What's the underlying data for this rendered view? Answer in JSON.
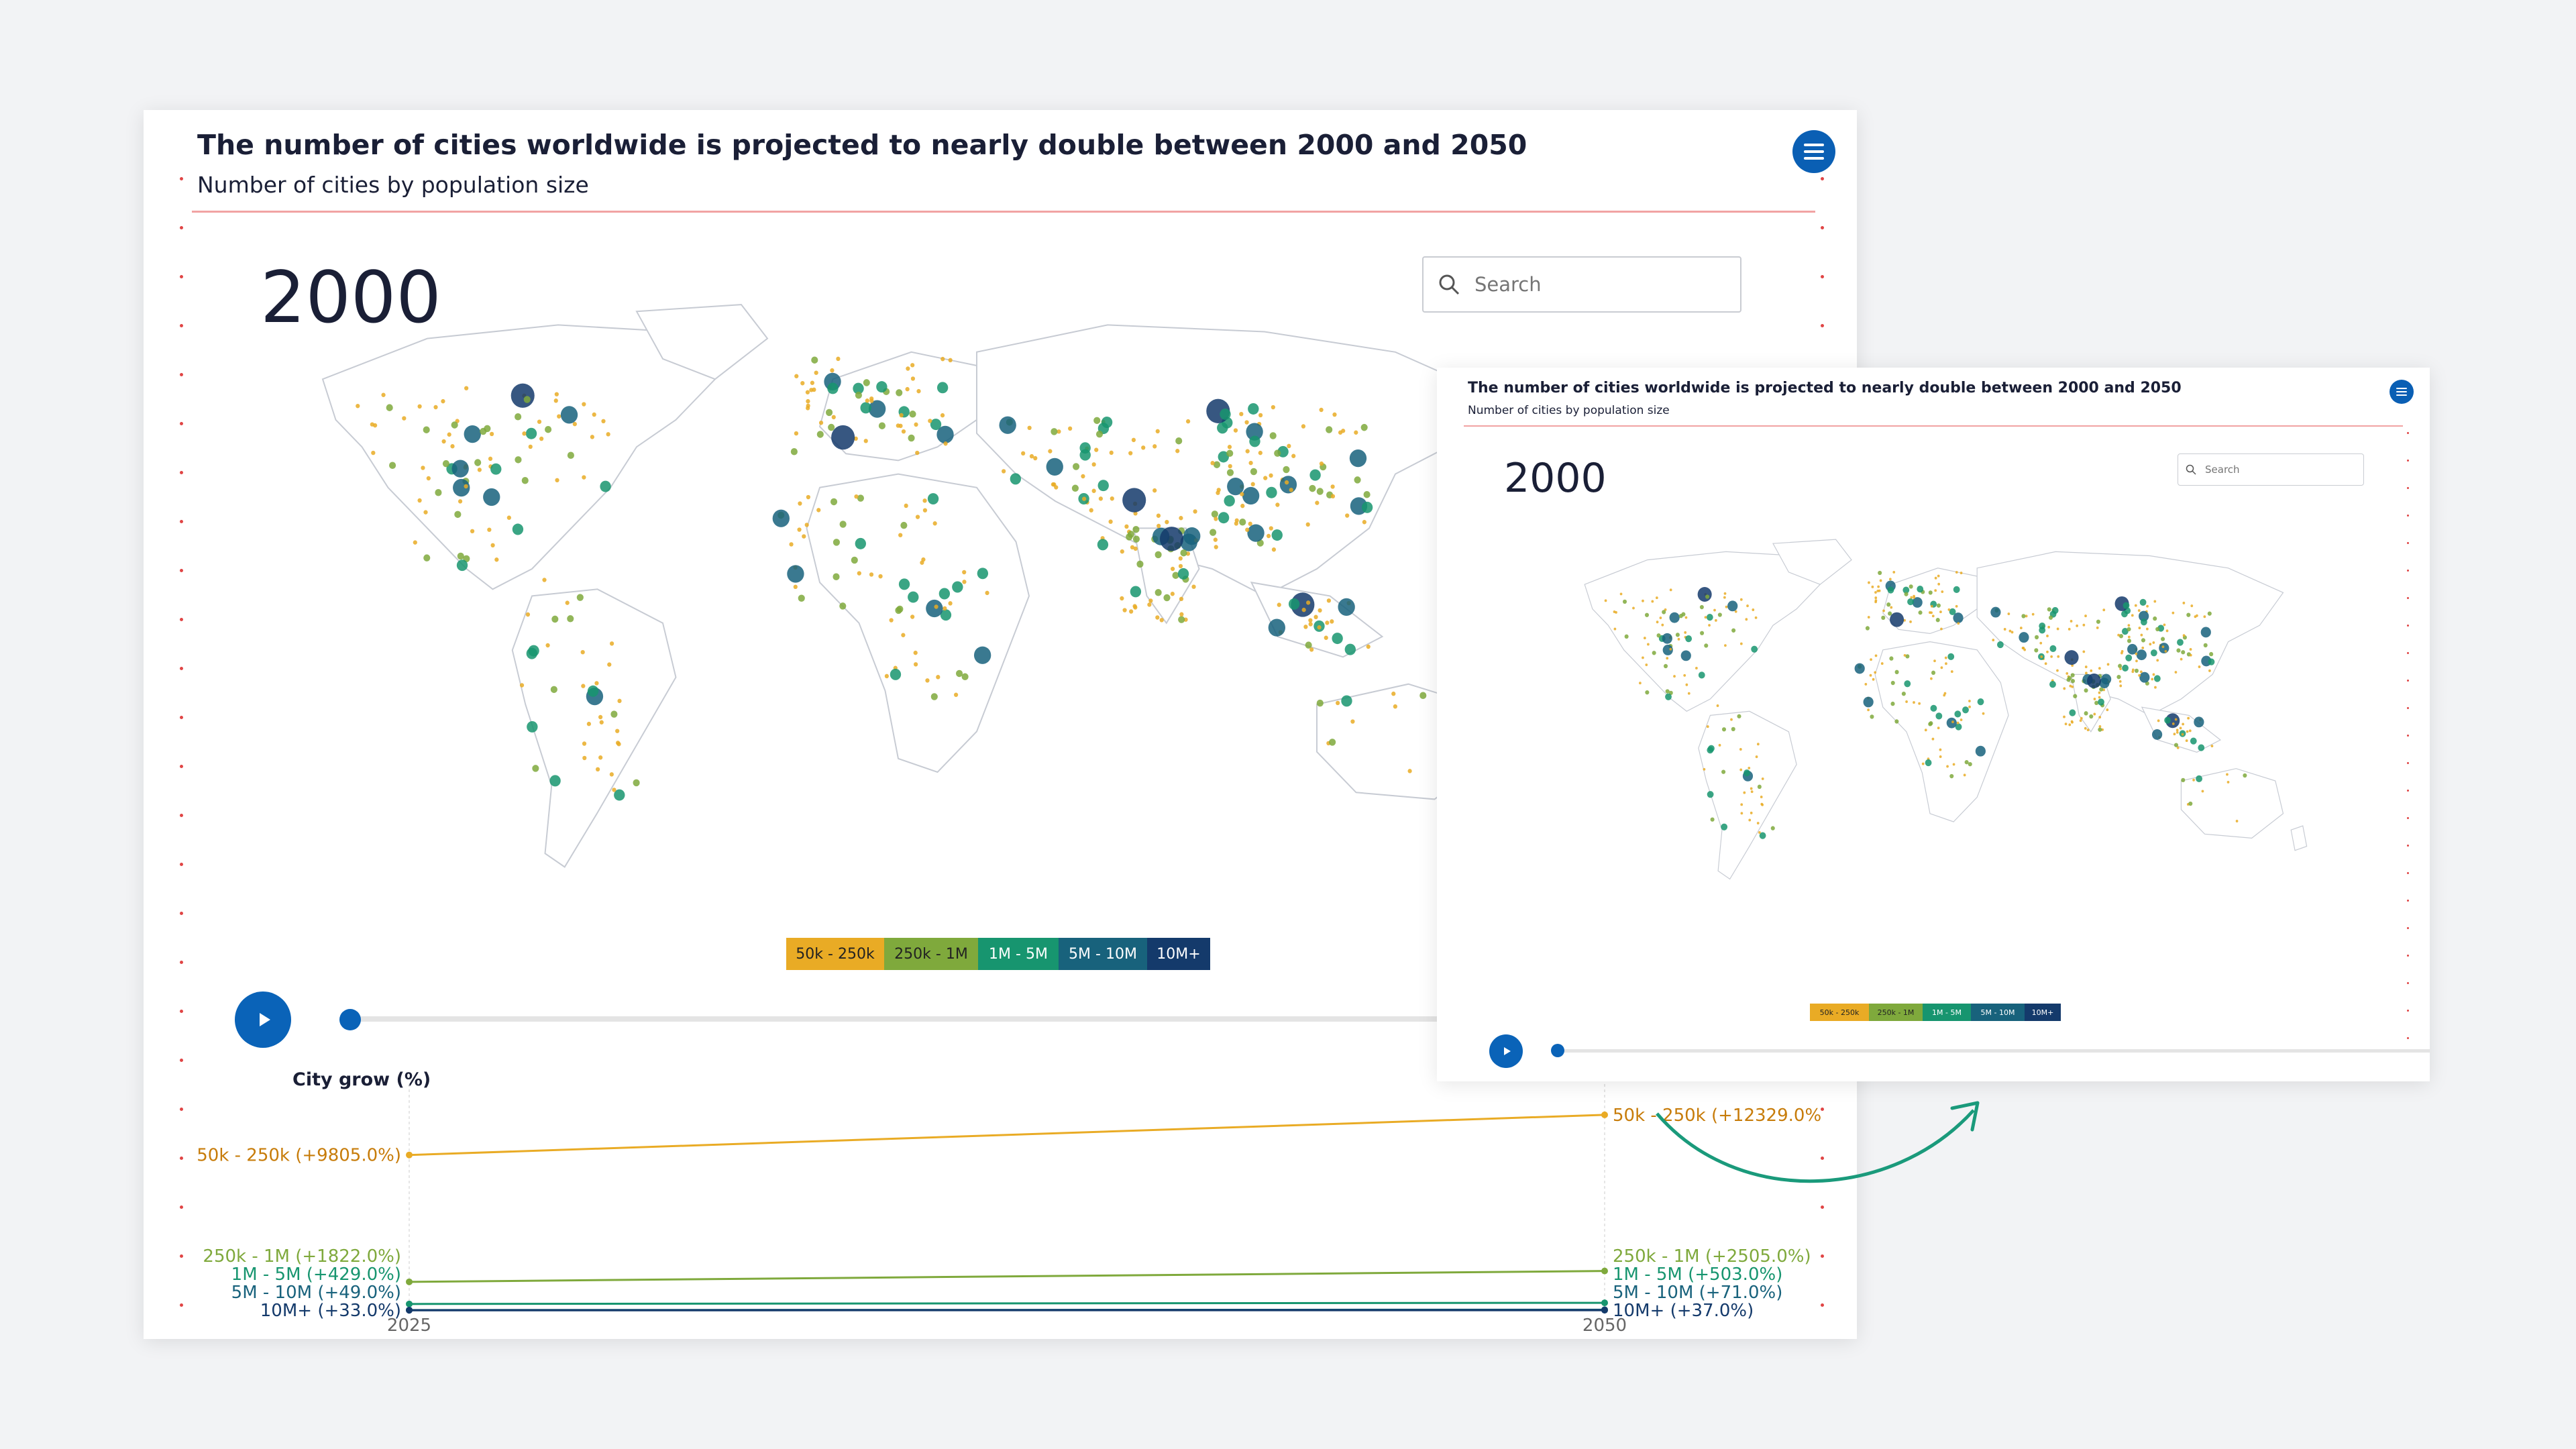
{
  "colors": {
    "cat1": "#e9ab25",
    "cat2": "#7fa93c",
    "cat3": "#17956f",
    "cat4": "#18627c",
    "cat5": "#143a6b",
    "accent": "#0a63b8",
    "rule": "#f1a3a3",
    "land_stroke": "#c7cbd3"
  },
  "main": {
    "title": "The number of cities worldwide is projected to nearly double between 2000 and 2050",
    "subtitle": "Number of cities by population size",
    "menu_icon": "hamburger-menu-icon",
    "year": "2000",
    "search_placeholder": "Search",
    "legend": [
      "50k - 250k",
      "250k - 1M",
      "1M - 5M",
      "5M - 10M",
      "10M+"
    ],
    "play_icon": "play-icon",
    "timeline_progress": 0
  },
  "growth": {
    "heading": "City grow (%)",
    "axis_start": "2025",
    "axis_end": "2050",
    "left_labels": [
      "50k - 250k (+9805.0%)",
      "250k - 1M (+1822.0%)",
      "1M - 5M (+429.0%)",
      "5M - 10M (+49.0%)",
      "10M+ (+33.0%)"
    ],
    "right_labels": [
      "50k - 250k (+12329.0%",
      "250k - 1M (+2505.0%)",
      "1M - 5M (+503.0%)",
      "5M - 10M (+71.0%)",
      "10M+ (+37.0%)"
    ]
  },
  "preview": {
    "title": "The number of cities worldwide is projected to nearly double between 2000 and 2050",
    "subtitle": "Number of cities by population size",
    "year": "2000",
    "search_placeholder": "Search",
    "legend": [
      "50k - 250k",
      "250k - 1M",
      "1M - 5M",
      "5M - 10M",
      "10M+"
    ],
    "timeline_progress": 0
  },
  "chart_data": {
    "type": "line",
    "title": "City grow (%)",
    "x": [
      "2025",
      "2050"
    ],
    "series": [
      {
        "name": "50k - 250k",
        "values": [
          9805.0,
          12329.0
        ]
      },
      {
        "name": "250k - 1M",
        "values": [
          1822.0,
          2505.0
        ]
      },
      {
        "name": "1M - 5M",
        "values": [
          429.0,
          503.0
        ]
      },
      {
        "name": "5M - 10M",
        "values": [
          49.0,
          71.0
        ]
      },
      {
        "name": "10M+",
        "values": [
          33.0,
          37.0
        ]
      }
    ]
  }
}
